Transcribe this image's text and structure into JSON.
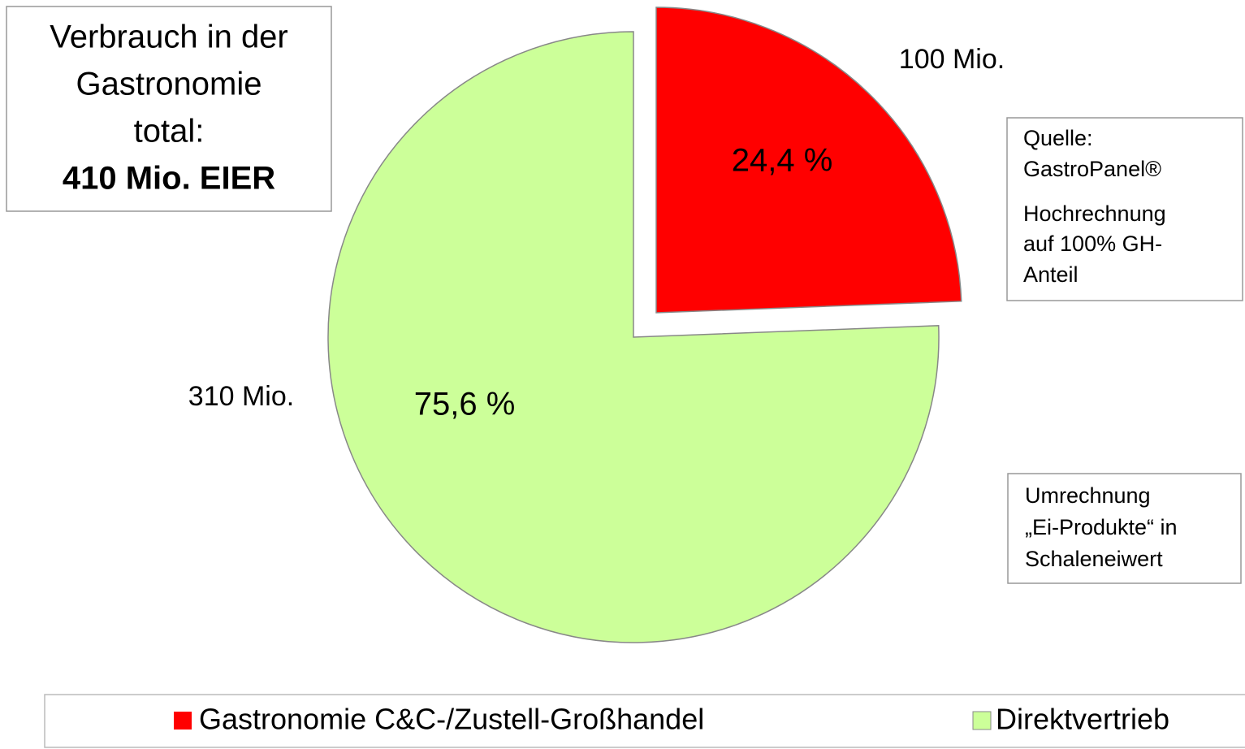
{
  "chart_data": {
    "type": "pie",
    "title": [
      "Verbrauch in der",
      "Gastronomie",
      "total:"
    ],
    "title_bold": "410 Mio. EIER",
    "categories": [
      "Gastronomie C&C-/Zustell-Großhandel",
      "Direktvertrieb"
    ],
    "values": [
      24.4,
      75.6
    ],
    "value_labels": [
      "24,4 %",
      "75,6 %"
    ],
    "amounts": [
      100,
      310
    ],
    "amount_labels": [
      "100 Mio.",
      "310 Mio."
    ],
    "colors": [
      "#ff0000",
      "#ccff99"
    ],
    "annotations": [
      [
        "Quelle:",
        "GastroPanel®",
        "Hochrechnung",
        "auf 100% GH-",
        "Anteil"
      ],
      [
        "Umrechnung",
        "„Ei-Produkte“ in",
        "Schaleneiwert"
      ]
    ],
    "legend": "bottom"
  }
}
